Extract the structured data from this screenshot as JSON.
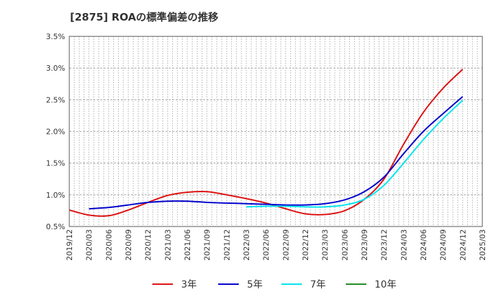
{
  "chart_data": {
    "type": "line",
    "title": "[2875]  ROAの標準偏差の推移",
    "xlabel": "",
    "ylabel": "",
    "ylim": [
      0.5,
      3.5
    ],
    "yticks": [
      "0.5%",
      "1.0%",
      "1.5%",
      "2.0%",
      "2.5%",
      "3.0%",
      "3.5%"
    ],
    "categories": [
      "2019/12",
      "2020/03",
      "2020/06",
      "2020/09",
      "2020/12",
      "2021/03",
      "2021/06",
      "2021/09",
      "2021/12",
      "2022/03",
      "2022/06",
      "2022/09",
      "2022/12",
      "2023/03",
      "2023/06",
      "2023/09",
      "2023/12",
      "2024/03",
      "2024/06",
      "2024/09",
      "2024/12",
      "2025/03"
    ],
    "grid": true,
    "legend_position": "bottom",
    "series": [
      {
        "name": "3年",
        "color": "#dd1111",
        "values": [
          0.76,
          0.68,
          0.67,
          0.76,
          0.88,
          0.99,
          1.04,
          1.05,
          1.0,
          0.94,
          0.87,
          0.78,
          0.7,
          0.69,
          0.75,
          0.93,
          1.25,
          1.8,
          2.3,
          2.68,
          2.98,
          null
        ]
      },
      {
        "name": "5年",
        "color": "#0000cc",
        "values": [
          null,
          0.78,
          0.8,
          0.84,
          0.88,
          0.9,
          0.9,
          0.88,
          0.87,
          0.86,
          0.85,
          0.84,
          0.84,
          0.86,
          0.92,
          1.05,
          1.28,
          1.65,
          2.0,
          2.28,
          2.55,
          null
        ]
      },
      {
        "name": "7年",
        "color": "#00e5ee",
        "values": [
          null,
          null,
          null,
          null,
          null,
          null,
          null,
          null,
          null,
          0.81,
          0.82,
          0.82,
          0.81,
          0.81,
          0.84,
          0.93,
          1.15,
          1.5,
          1.87,
          2.2,
          2.49,
          null
        ]
      },
      {
        "name": "10年",
        "color": "#228b22",
        "values": [
          null,
          null,
          null,
          null,
          null,
          null,
          null,
          null,
          null,
          null,
          null,
          null,
          null,
          null,
          null,
          null,
          null,
          null,
          null,
          null,
          null,
          null
        ]
      }
    ]
  }
}
